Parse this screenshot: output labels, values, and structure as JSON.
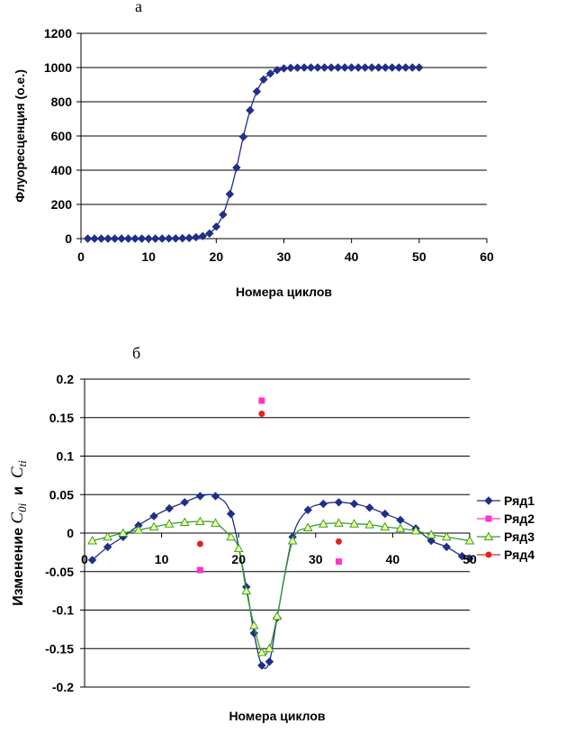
{
  "chart_data": [
    {
      "type": "line",
      "panel_label": "а",
      "title": "",
      "xlabel": "Номера циклов",
      "ylabel": "Флуоресценция (о.е.)",
      "xlim": [
        0,
        60
      ],
      "ylim": [
        0,
        1200
      ],
      "xticks": [
        0,
        10,
        20,
        30,
        40,
        50,
        60
      ],
      "yticks": [
        0,
        200,
        400,
        600,
        800,
        1000,
        1200
      ],
      "grid": "horizontal",
      "series": [
        {
          "name": "Флуоресценция",
          "color": "#1f2f8a",
          "marker": "diamond",
          "x": [
            1,
            2,
            3,
            4,
            5,
            6,
            7,
            8,
            9,
            10,
            11,
            12,
            13,
            14,
            15,
            16,
            17,
            18,
            19,
            20,
            21,
            22,
            23,
            24,
            25,
            26,
            27,
            28,
            29,
            30,
            31,
            32,
            33,
            34,
            35,
            36,
            37,
            38,
            39,
            40,
            41,
            42,
            43,
            44,
            45,
            46,
            47,
            48,
            49,
            50
          ],
          "y": [
            0,
            0,
            0,
            0,
            0,
            0,
            0,
            0,
            0,
            0,
            0,
            0,
            1,
            1,
            2,
            4,
            8,
            15,
            30,
            70,
            140,
            260,
            415,
            595,
            750,
            860,
            930,
            965,
            985,
            995,
            998,
            999,
            1000,
            1000,
            1000,
            1000,
            1000,
            1000,
            1000,
            1000,
            1000,
            1000,
            1000,
            1000,
            1000,
            1000,
            1000,
            1000,
            1000,
            1000
          ]
        }
      ]
    },
    {
      "type": "line",
      "panel_label": "б",
      "title": "",
      "xlabel": "Номера циклов",
      "ylabel": {
        "prefix": "Изменение ",
        "v1": "C",
        "s1": "0i",
        "mid": "  и  ",
        "v2": "C",
        "s2": "ti"
      },
      "xlim": [
        0,
        50
      ],
      "ylim": [
        -0.2,
        0.2
      ],
      "xticks": [
        0,
        10,
        20,
        30,
        40,
        50
      ],
      "yticks": [
        -0.2,
        -0.15,
        -0.1,
        -0.05,
        0,
        0.05,
        0.1,
        0.15,
        0.2
      ],
      "grid": "horizontal",
      "legend_position": "right",
      "series": [
        {
          "name": "Ряд1",
          "color": "#1f2f8a",
          "marker": "diamond",
          "x": [
            1,
            3,
            5,
            7,
            9,
            11,
            13,
            15,
            17,
            19,
            21,
            22,
            23,
            24,
            25,
            27,
            29,
            31,
            33,
            35,
            37,
            39,
            41,
            43,
            45,
            47,
            49,
            50
          ],
          "y": [
            -0.035,
            -0.018,
            -0.005,
            0.01,
            0.022,
            0.032,
            0.04,
            0.048,
            0.048,
            0.025,
            -0.07,
            -0.13,
            -0.172,
            -0.167,
            -0.11,
            -0.005,
            0.03,
            0.038,
            0.04,
            0.038,
            0.033,
            0.025,
            0.017,
            0.006,
            -0.01,
            -0.018,
            -0.03,
            -0.033
          ]
        },
        {
          "name": "Ряд2",
          "color": "#ff33cc",
          "marker": "square",
          "x": [
            15,
            23,
            33
          ],
          "y": [
            -0.048,
            0.172,
            -0.037
          ]
        },
        {
          "name": "Ряд3",
          "color": "#33a02c",
          "marker": "triangle",
          "x": [
            1,
            3,
            5,
            7,
            9,
            11,
            13,
            15,
            17,
            19,
            20,
            21,
            22,
            23,
            24,
            25,
            27,
            29,
            31,
            33,
            35,
            37,
            39,
            41,
            43,
            45,
            47,
            50
          ],
          "y": [
            -0.01,
            -0.005,
            0.0,
            0.004,
            0.008,
            0.012,
            0.014,
            0.015,
            0.013,
            -0.005,
            -0.02,
            -0.075,
            -0.12,
            -0.155,
            -0.15,
            -0.108,
            -0.01,
            0.007,
            0.012,
            0.013,
            0.012,
            0.011,
            0.008,
            0.006,
            0.003,
            -0.002,
            -0.005,
            -0.01
          ]
        },
        {
          "name": "Ряд4",
          "color": "#e52222",
          "marker": "circle",
          "x": [
            15,
            23,
            33
          ],
          "y": [
            -0.014,
            0.155,
            -0.011
          ]
        }
      ]
    }
  ]
}
